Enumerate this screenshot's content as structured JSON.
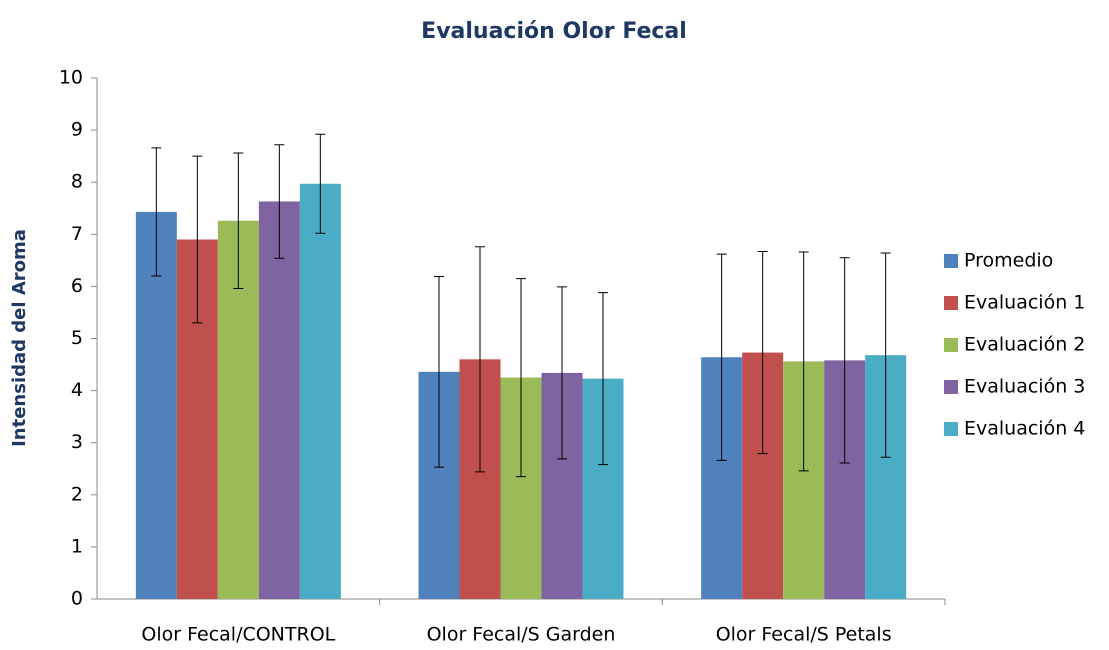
{
  "chart_data": {
    "type": "bar",
    "title": "Evaluación Olor Fecal",
    "y_label": "Intensidad del Aroma",
    "categories": [
      "Olor Fecal/CONTROL",
      "Olor Fecal/S Garden",
      "Olor Fecal/S Petals"
    ],
    "series": [
      {
        "name": "Promedio",
        "color": "#4f81bd",
        "values": [
          7.43,
          4.36,
          4.64
        ],
        "errors": [
          1.23,
          1.83,
          1.98
        ]
      },
      {
        "name": "Evaluación 1",
        "color": "#c0504d",
        "values": [
          6.9,
          4.6,
          4.73
        ],
        "errors": [
          1.6,
          2.16,
          1.94
        ]
      },
      {
        "name": "Evaluación 2",
        "color": "#9bbb59",
        "values": [
          7.26,
          4.25,
          4.56
        ],
        "errors": [
          1.3,
          1.9,
          2.1
        ]
      },
      {
        "name": "Evaluación 3",
        "color": "#8064a2",
        "values": [
          7.63,
          4.34,
          4.58
        ],
        "errors": [
          1.09,
          1.65,
          1.97
        ]
      },
      {
        "name": "Evaluación 4",
        "color": "#4bacc6",
        "values": [
          7.97,
          4.23,
          4.68
        ],
        "errors": [
          0.95,
          1.65,
          1.96
        ]
      }
    ],
    "ylim": [
      0,
      10
    ],
    "yticks": [
      0,
      1,
      2,
      3,
      4,
      5,
      6,
      7,
      8,
      9,
      10
    ],
    "legend": "right"
  }
}
